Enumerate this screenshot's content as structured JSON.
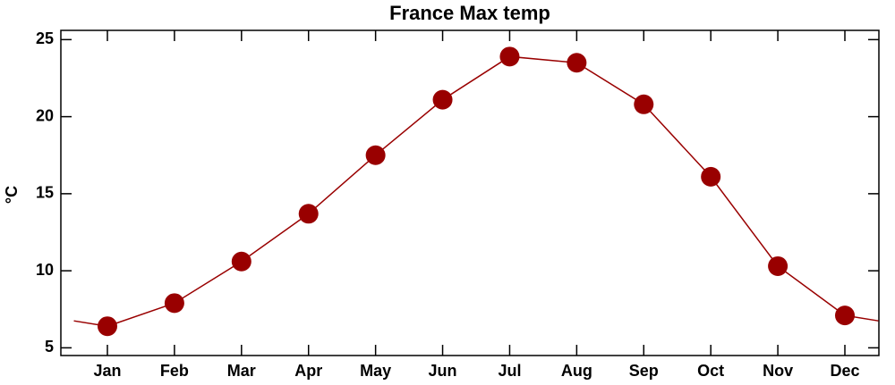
{
  "chart_data": {
    "type": "line",
    "title": "France Max temp",
    "y_label": "°C",
    "categories": [
      "Jan",
      "Feb",
      "Mar",
      "Apr",
      "May",
      "Jun",
      "Jul",
      "Aug",
      "Sep",
      "Oct",
      "Nov",
      "Dec"
    ],
    "series": [
      {
        "name": "Max temp",
        "color": "#990000",
        "values": [
          6.4,
          7.9,
          10.6,
          13.7,
          17.5,
          21.1,
          23.9,
          23.5,
          20.8,
          16.1,
          10.3,
          7.1
        ]
      }
    ],
    "ylim": [
      4.5,
      25.6
    ],
    "yticks": [
      5,
      10,
      15,
      20,
      25
    ],
    "grid": false
  }
}
